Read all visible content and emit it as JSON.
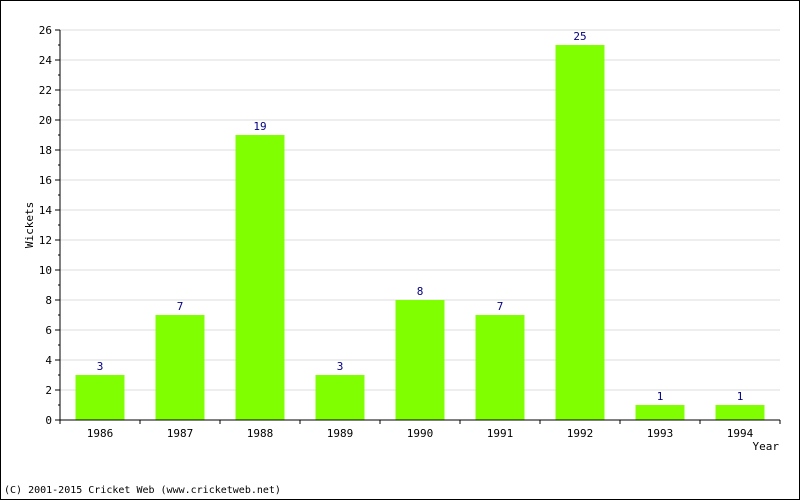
{
  "chart_data": {
    "type": "bar",
    "categories": [
      "1986",
      "1987",
      "1988",
      "1989",
      "1990",
      "1991",
      "1992",
      "1993",
      "1994"
    ],
    "values": [
      3,
      7,
      19,
      3,
      8,
      7,
      25,
      1,
      1
    ],
    "data_labels": [
      "3",
      "7",
      "19",
      "3",
      "8",
      "7",
      "25",
      "1",
      "1"
    ],
    "xlabel": "Year",
    "ylabel": "Wickets",
    "ylim": [
      0,
      26
    ],
    "y_ticks": [
      0,
      2,
      4,
      6,
      8,
      10,
      12,
      14,
      16,
      18,
      20,
      22,
      24,
      26
    ],
    "grid": true,
    "legend": "none",
    "colors": {
      "bar": "#80ff00",
      "value_label": "#000080",
      "grid": "#dddddd",
      "axis": "#000000"
    }
  },
  "footer": {
    "copyright": "(C) 2001-2015 Cricket Web (www.cricketweb.net)"
  }
}
